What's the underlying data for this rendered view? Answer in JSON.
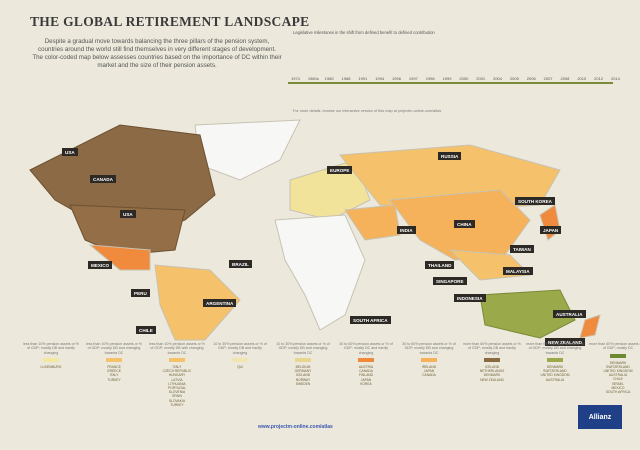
{
  "header": {
    "title": "THE GLOBAL RETIREMENT LANDSCAPE",
    "intro": "Despite a gradual move towards balancing the three pillars of the pension system, countries around the world still find themselves in very different stages of development. The color-coded map below assesses countries based on the importance of DC within their market and the size of their pension assets."
  },
  "timeline": {
    "title": "Legislative milestones in the shift from defined benefit to defined contribution",
    "years": [
      "1974",
      "1980s",
      "1985",
      "1988",
      "1991",
      "1994",
      "1996",
      "1997",
      "1998",
      "1999",
      "2000",
      "2001",
      "2004",
      "2005",
      "2006",
      "2007",
      "2008",
      "2010",
      "2012",
      "2014"
    ],
    "note": "For more details, browse our interactive version of this map at projectm-online.com/atlas"
  },
  "map": {
    "country_labels": [
      "USA",
      "CANADA",
      "USA",
      "EUROPE",
      "RUSSIA",
      "SOUTH KOREA",
      "JAPAN",
      "CHINA",
      "INDIA",
      "TAIWAN",
      "MEXICO",
      "BRAZIL",
      "PERU",
      "ARGENTINA",
      "CHILE",
      "THAILAND",
      "SINGAPORE",
      "MALAYSIA",
      "INDONESIA",
      "AUSTRALIA",
      "NEW ZEALAND",
      "SOUTH AFRICA"
    ]
  },
  "legend": [
    {
      "heading": "less than 10% pension assets or % of GDP; mostly DB and hardly changing",
      "color": "#f3e8a0",
      "countries": [
        "LUXEMBURG"
      ]
    },
    {
      "heading": "less than 10% pension assets or % of GDP; mostly DB and changing towards DC",
      "color": "#f5c16a",
      "countries": [
        "FRANCE",
        "GREECE",
        "ITALY",
        "TURKEY"
      ]
    },
    {
      "heading": "less than 10% pension assets or % of GDP; mostly DB with changing towards DC",
      "color": "#f5c16a",
      "countries": [
        "ITALY",
        "CZECH REPUBLIC",
        "HUNGARY",
        "LATVIA",
        "LITHUANIA",
        "PORTUGAL",
        "SLOVENIA",
        "SPAIN",
        "SLOVAKIA",
        "TURKEY"
      ]
    },
    {
      "heading": "10 to 30% pension assets or % of GDP; mostly DB and hardly changing",
      "color": "#f0e6b2",
      "countries": [
        "QUI"
      ]
    },
    {
      "heading": "10 to 30% pension assets or % of GDP; mostly DB and changing towards DC",
      "color": "#e8d58e",
      "countries": [
        "BELGIUM",
        "GERMANY",
        "ICELAND",
        "NORWAY",
        "SWEDEN"
      ]
    },
    {
      "heading": "30 to 60% pension assets or % of GDP; mostly DC and hardly changing",
      "color": "#f08a3c",
      "countries": [
        "AUSTRIA",
        "CANADA",
        "FINLAND",
        "JAPAN",
        "KOREA"
      ]
    },
    {
      "heading": "30 to 60% pension assets or % of GDP; mostly DB and changing towards DC",
      "color": "#f5b25a",
      "countries": [
        "IRELAND",
        "JAPAN",
        "CANADA"
      ]
    },
    {
      "heading": "more than 60% pension assets or % of GDP; mostly DB and hardly changing",
      "color": "#8a6a40",
      "countries": [
        "ICELAND",
        "NETHERLANDS",
        "DENMARK",
        "NEW ZEALAND"
      ]
    },
    {
      "heading": "more than 60% pension assets or % of GDP; mostly DB and changing towards DC",
      "color": "#9aaa4a",
      "countries": [
        "DENMARK",
        "SWITZERLAND",
        "UNITED KINGDOM",
        "AUSTRALIA"
      ]
    },
    {
      "heading": "more than 60% pension assets or % of GDP; mostly DC",
      "color": "#6e8a30",
      "countries": [
        "DENMARK",
        "SWITZERLAND",
        "UNITED KINGDOM",
        "AUSTRALIA",
        "CHILE",
        "ISRAEL",
        "MEXICO",
        "SOUTH AFRICA"
      ]
    }
  ],
  "footer": {
    "url": "www.projectm-online.com/atlas",
    "brand": "Allianz"
  }
}
